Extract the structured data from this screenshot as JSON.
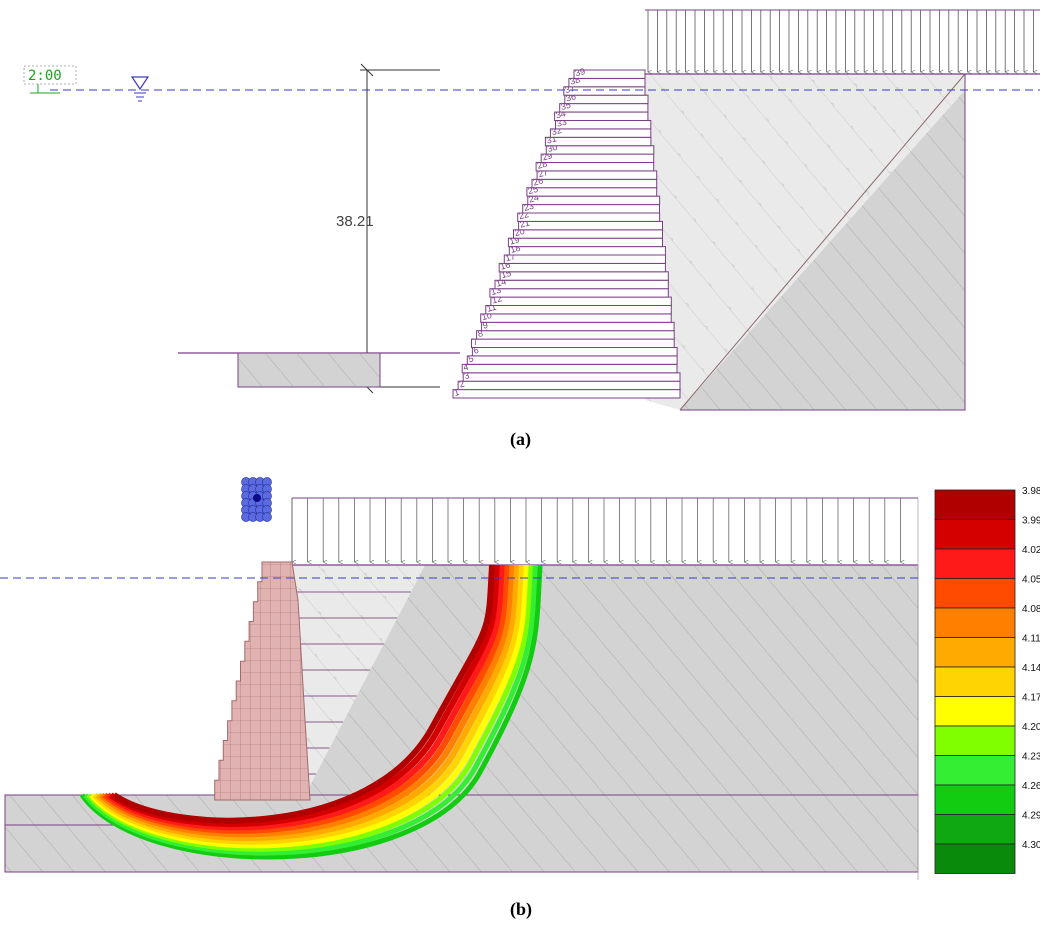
{
  "panel_a": {
    "caption": "(a)",
    "water_level_label": "2:00",
    "dimension_label": "38.21",
    "layer_numbers": [
      "1",
      "2",
      "3",
      "4",
      "5",
      "6",
      "7",
      "8",
      "9",
      "10",
      "11",
      "12",
      "13",
      "14",
      "15",
      "16",
      "17",
      "18",
      "19",
      "20",
      "21",
      "22",
      "23",
      "24",
      "25",
      "26",
      "27",
      "28",
      "29",
      "30",
      "31",
      "32",
      "33",
      "34",
      "35",
      "36",
      "37",
      "38",
      "39"
    ]
  },
  "panel_b": {
    "caption": "(b)",
    "legend": {
      "values": [
        "3.98",
        "3.99",
        "4.02",
        "4.05",
        "4.08",
        "4.11",
        "4.14",
        "4.17",
        "4.20",
        "4.23",
        "4.26",
        "4.29",
        "4.30"
      ],
      "colors": [
        "#b00000",
        "#d40000",
        "#ff1a1a",
        "#ff4a00",
        "#ff8000",
        "#ffaa00",
        "#ffd400",
        "#ffff00",
        "#80ff00",
        "#33ee33",
        "#11cc11",
        "#10a810",
        "#0a8a0a"
      ]
    }
  },
  "colors": {
    "outline": "#7a3f86",
    "water_line": "#3a3acc",
    "soil_fill": "#d3d3d3",
    "backfill_fill": "#eaeaea",
    "wall_fill_b": "#e0b2b2"
  }
}
